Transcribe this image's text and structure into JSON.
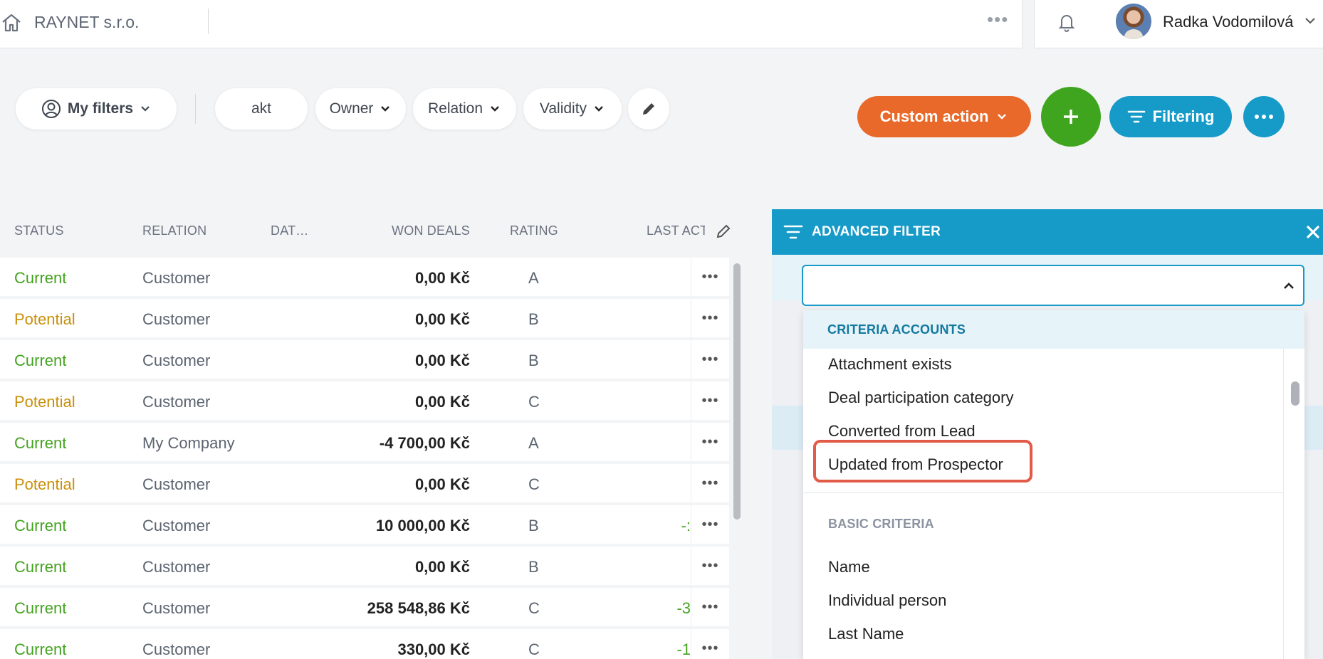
{
  "topbar": {
    "company": "RAYNET s.r.o.",
    "more": "•••",
    "user_name": "Radka Vodomilová"
  },
  "toolbar": {
    "my_filters": "My filters",
    "search_chip": "akt",
    "owner": "Owner",
    "relation": "Relation",
    "validity": "Validity",
    "custom_action": "Custom action",
    "filtering": "Filtering"
  },
  "table": {
    "headers": {
      "status": "STATUS",
      "relation": "RELATION",
      "date": "DAT…",
      "won_deals": "WON DEALS",
      "rating": "RATING",
      "last_activity": "LAST ACT"
    },
    "row_more": "•••",
    "rows": [
      {
        "status": "Current",
        "relation": "Customer",
        "won": "0,00 Kč",
        "rating": "A",
        "last": ""
      },
      {
        "status": "Potential",
        "relation": "Customer",
        "won": "0,00 Kč",
        "rating": "B",
        "last": ""
      },
      {
        "status": "Current",
        "relation": "Customer",
        "won": "0,00 Kč",
        "rating": "B",
        "last": ""
      },
      {
        "status": "Potential",
        "relation": "Customer",
        "won": "0,00 Kč",
        "rating": "C",
        "last": ""
      },
      {
        "status": "Current",
        "relation": "My Company",
        "won": "-4 700,00 Kč",
        "rating": "A",
        "last": ""
      },
      {
        "status": "Potential",
        "relation": "Customer",
        "won": "0,00 Kč",
        "rating": "C",
        "last": ""
      },
      {
        "status": "Current",
        "relation": "Customer",
        "won": "10 000,00 Kč",
        "rating": "B",
        "last": "-:"
      },
      {
        "status": "Current",
        "relation": "Customer",
        "won": "0,00 Kč",
        "rating": "B",
        "last": ""
      },
      {
        "status": "Current",
        "relation": "Customer",
        "won": "258 548,86 Kč",
        "rating": "C",
        "last": "-3"
      },
      {
        "status": "Current",
        "relation": "Customer",
        "won": "330,00 Kč",
        "rating": "C",
        "last": "-1"
      }
    ]
  },
  "advanced_filter": {
    "title": "ADVANCED FILTER",
    "select_value": "",
    "group_accounts": "CRITERIA ACCOUNTS",
    "accounts_options": [
      "Attachment exists",
      "Deal participation category",
      "Converted from Lead",
      "Updated from Prospector"
    ],
    "group_basic": "BASIC CRITERIA",
    "basic_options": [
      "Name",
      "Individual person",
      "Last Name"
    ]
  },
  "colors": {
    "accent_blue": "#169ac8",
    "custom_action_orange": "#e8692a",
    "add_green": "#3fa51e",
    "status_current": "#44a320",
    "status_potential": "#c8900a",
    "highlight_red": "#e25a48"
  }
}
